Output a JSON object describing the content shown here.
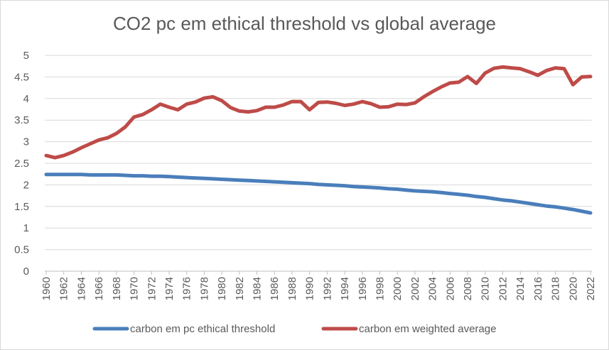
{
  "chart_data": {
    "type": "line",
    "title": "CO2 pc em ethical threshold vs global average",
    "xlabel": "",
    "ylabel": "",
    "ylim": [
      0,
      5
    ],
    "y_ticks": [
      "0",
      "0.5",
      "1",
      "1.5",
      "2",
      "2.5",
      "3",
      "3.5",
      "4",
      "4.5",
      "5"
    ],
    "x_ticks": [
      "1960",
      "1962",
      "1964",
      "1966",
      "1968",
      "1970",
      "1972",
      "1974",
      "1976",
      "1978",
      "1980",
      "1982",
      "1984",
      "1986",
      "1988",
      "1990",
      "1992",
      "1994",
      "1996",
      "1998",
      "2000",
      "2002",
      "2004",
      "2006",
      "2008",
      "2010",
      "2012",
      "2014",
      "2016",
      "2018",
      "2020",
      "2022"
    ],
    "grid": "horizontal",
    "legend_position": "bottom",
    "x": [
      1960,
      1961,
      1962,
      1963,
      1964,
      1965,
      1966,
      1967,
      1968,
      1969,
      1970,
      1971,
      1972,
      1973,
      1974,
      1975,
      1976,
      1977,
      1978,
      1979,
      1980,
      1981,
      1982,
      1983,
      1984,
      1985,
      1986,
      1987,
      1988,
      1989,
      1990,
      1991,
      1992,
      1993,
      1994,
      1995,
      1996,
      1997,
      1998,
      1999,
      2000,
      2001,
      2002,
      2003,
      2004,
      2005,
      2006,
      2007,
      2008,
      2009,
      2010,
      2011,
      2012,
      2013,
      2014,
      2015,
      2016,
      2017,
      2018,
      2019,
      2020,
      2021,
      2022
    ],
    "series": [
      {
        "name": "carbon em pc ethical threshold",
        "color": "#4a7ebb",
        "values": [
          2.24,
          2.24,
          2.24,
          2.24,
          2.24,
          2.23,
          2.23,
          2.23,
          2.23,
          2.22,
          2.21,
          2.21,
          2.2,
          2.2,
          2.19,
          2.18,
          2.17,
          2.16,
          2.15,
          2.14,
          2.13,
          2.12,
          2.11,
          2.1,
          2.09,
          2.08,
          2.07,
          2.06,
          2.05,
          2.04,
          2.03,
          2.01,
          2.0,
          1.99,
          1.98,
          1.96,
          1.95,
          1.94,
          1.93,
          1.91,
          1.9,
          1.88,
          1.86,
          1.85,
          1.84,
          1.82,
          1.8,
          1.78,
          1.76,
          1.73,
          1.71,
          1.68,
          1.65,
          1.63,
          1.6,
          1.57,
          1.54,
          1.51,
          1.49,
          1.46,
          1.43,
          1.39,
          1.35
        ]
      },
      {
        "name": "carbon em weighted average",
        "color": "#be4b48",
        "values": [
          2.68,
          2.63,
          2.68,
          2.76,
          2.86,
          2.95,
          3.04,
          3.09,
          3.19,
          3.34,
          3.57,
          3.63,
          3.74,
          3.87,
          3.8,
          3.74,
          3.87,
          3.92,
          4.01,
          4.04,
          3.95,
          3.79,
          3.71,
          3.69,
          3.72,
          3.8,
          3.8,
          3.85,
          3.93,
          3.93,
          3.74,
          3.91,
          3.92,
          3.89,
          3.84,
          3.87,
          3.93,
          3.88,
          3.8,
          3.81,
          3.87,
          3.86,
          3.9,
          4.04,
          4.16,
          4.27,
          4.36,
          4.38,
          4.51,
          4.35,
          4.59,
          4.7,
          4.73,
          4.71,
          4.69,
          4.62,
          4.54,
          4.65,
          4.71,
          4.69,
          4.32,
          4.5,
          4.51
        ]
      }
    ]
  }
}
